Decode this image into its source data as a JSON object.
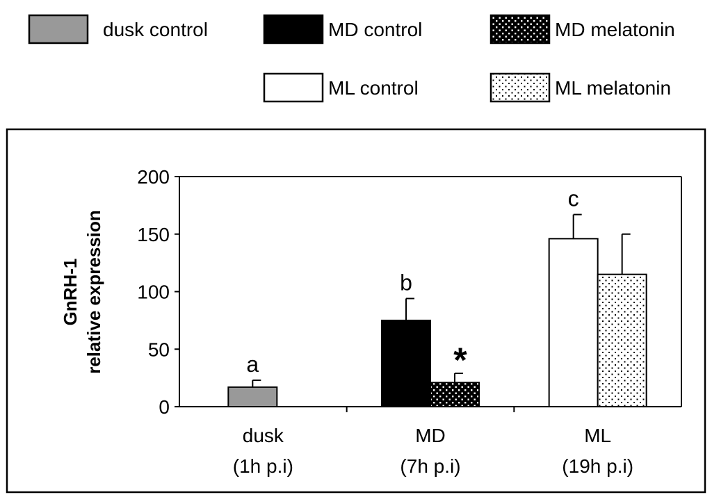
{
  "chart_data": {
    "type": "bar",
    "title": "",
    "xlabel": "",
    "ylabel_lines": [
      "GnRH-1",
      "relative expression"
    ],
    "ylim": [
      0,
      200
    ],
    "yticks": [
      0,
      50,
      100,
      150,
      200
    ],
    "grid": false,
    "legend_position": "top",
    "categories": [
      {
        "name": "dusk",
        "sub": "(1h p.i)"
      },
      {
        "name": "MD",
        "sub": "(7h p.i)"
      },
      {
        "name": "ML",
        "sub": "(19h p.i)"
      }
    ],
    "series": [
      {
        "name": "dusk control",
        "pattern": "gray",
        "values": [
          17,
          null,
          null
        ],
        "errors": [
          6,
          null,
          null
        ]
      },
      {
        "name": "MD control",
        "pattern": "black",
        "values": [
          null,
          75,
          null
        ],
        "errors": [
          null,
          19,
          null
        ]
      },
      {
        "name": "MD melatonin",
        "pattern": "dots-dark",
        "values": [
          null,
          21,
          null
        ],
        "errors": [
          null,
          8,
          null
        ]
      },
      {
        "name": "ML control",
        "pattern": "white",
        "values": [
          null,
          null,
          146
        ],
        "errors": [
          null,
          null,
          21
        ]
      },
      {
        "name": "ML melatonin",
        "pattern": "dots-light",
        "values": [
          null,
          null,
          115
        ],
        "errors": [
          null,
          null,
          35
        ]
      }
    ],
    "annotations": [
      {
        "text": "a",
        "series": "dusk control",
        "category": "dusk"
      },
      {
        "text": "b",
        "series": "MD control",
        "category": "MD"
      },
      {
        "text": "c",
        "series": "ML control",
        "category": "ML"
      },
      {
        "text": "*",
        "series": "MD melatonin",
        "category": "MD"
      }
    ],
    "colors": {
      "gray": "#999999",
      "black": "#000000",
      "white": "#ffffff"
    }
  }
}
